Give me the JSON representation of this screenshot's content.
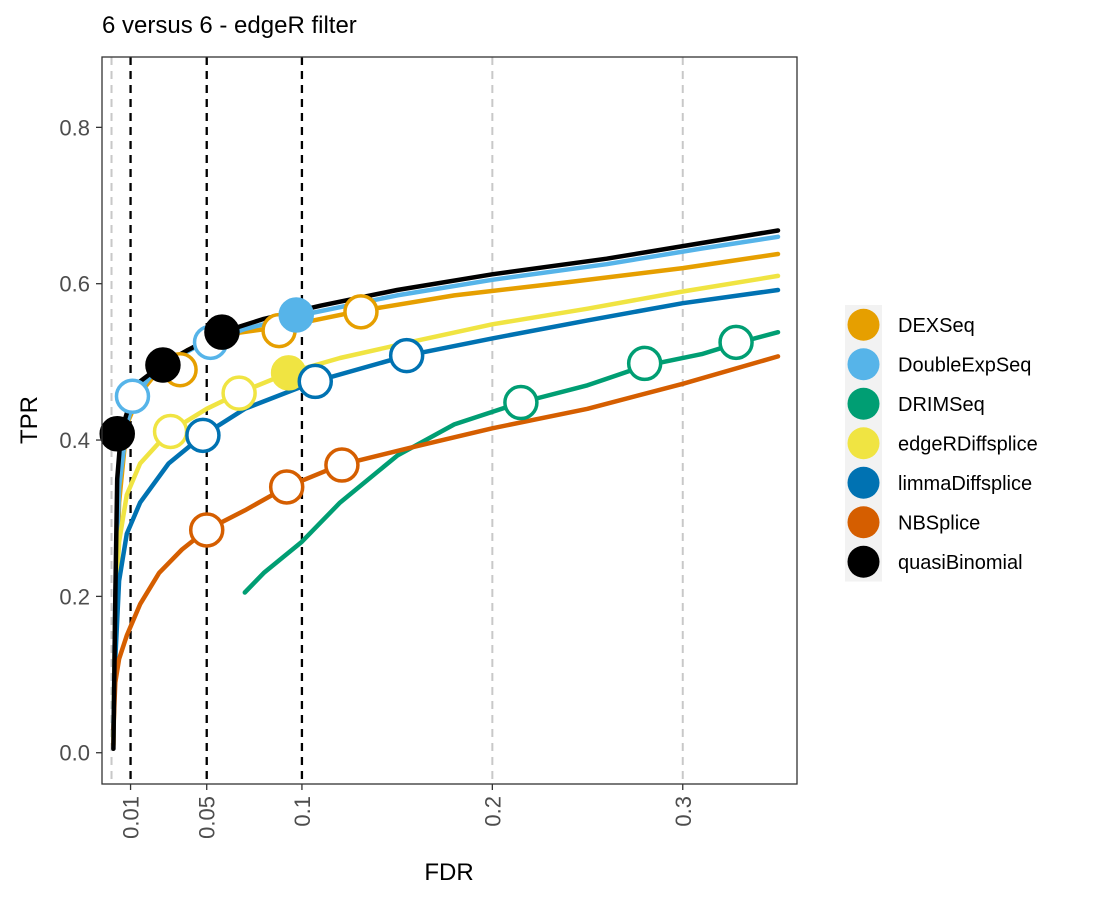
{
  "chart_data": {
    "type": "line",
    "title": "6 versus 6 - edgeR filter",
    "xlabel": "FDR",
    "ylabel": "TPR",
    "xlim": [
      -0.005,
      0.36
    ],
    "ylim": [
      -0.04,
      0.89
    ],
    "x_ticks": [
      0.01,
      0.05,
      0.1,
      0.2,
      0.3
    ],
    "x_tick_labels": [
      "0.01",
      "0.05",
      "0.1",
      "0.2",
      "0.3"
    ],
    "y_ticks": [
      0.0,
      0.2,
      0.4,
      0.6,
      0.8
    ],
    "y_tick_labels": [
      "0.0",
      "0.2",
      "0.4",
      "0.6",
      "0.8"
    ],
    "x_grid_gray": [
      0,
      0.01,
      0.05,
      0.1,
      0.2,
      0.3
    ],
    "threshold_lines": [
      0.01,
      0.05,
      0.1
    ],
    "legend_position": "right",
    "series": [
      {
        "name": "DEXSeq",
        "color": "#E69F00",
        "x": [
          0.001,
          0.002,
          0.004,
          0.008,
          0.015,
          0.025,
          0.04,
          0.06,
          0.09,
          0.13,
          0.18,
          0.24,
          0.3,
          0.35
        ],
        "y": [
          0.01,
          0.15,
          0.32,
          0.42,
          0.46,
          0.49,
          0.515,
          0.535,
          0.545,
          0.565,
          0.585,
          0.602,
          0.62,
          0.638
        ],
        "points": [
          {
            "x": 0.036,
            "y": 0.49,
            "filled": false
          },
          {
            "x": 0.088,
            "y": 0.54,
            "filled": false
          },
          {
            "x": 0.131,
            "y": 0.564,
            "filled": false
          }
        ]
      },
      {
        "name": "DoubleExpSeq",
        "color": "#56B4E9",
        "x": [
          0.001,
          0.002,
          0.004,
          0.008,
          0.012,
          0.02,
          0.03,
          0.045,
          0.07,
          0.1,
          0.15,
          0.2,
          0.26,
          0.31,
          0.35
        ],
        "y": [
          0.02,
          0.2,
          0.34,
          0.42,
          0.455,
          0.48,
          0.5,
          0.52,
          0.542,
          0.56,
          0.585,
          0.605,
          0.625,
          0.645,
          0.66
        ],
        "points": [
          {
            "x": 0.011,
            "y": 0.456,
            "filled": false
          },
          {
            "x": 0.052,
            "y": 0.525,
            "filled": false
          },
          {
            "x": 0.097,
            "y": 0.56,
            "filled": true
          }
        ]
      },
      {
        "name": "DRIMSeq",
        "color": "#009E73",
        "x": [
          0.07,
          0.08,
          0.1,
          0.12,
          0.15,
          0.18,
          0.215,
          0.25,
          0.28,
          0.31,
          0.33,
          0.35
        ],
        "y": [
          0.205,
          0.23,
          0.27,
          0.32,
          0.38,
          0.42,
          0.448,
          0.47,
          0.495,
          0.51,
          0.525,
          0.538
        ],
        "points": [
          {
            "x": 0.215,
            "y": 0.448,
            "filled": false
          },
          {
            "x": 0.28,
            "y": 0.498,
            "filled": false
          },
          {
            "x": 0.328,
            "y": 0.525,
            "filled": false
          }
        ]
      },
      {
        "name": "edgeRDiffsplice",
        "color": "#F0E442",
        "x": [
          0.001,
          0.002,
          0.004,
          0.008,
          0.015,
          0.03,
          0.05,
          0.067,
          0.093,
          0.12,
          0.16,
          0.2,
          0.25,
          0.3,
          0.35
        ],
        "y": [
          0.02,
          0.18,
          0.27,
          0.33,
          0.37,
          0.41,
          0.44,
          0.46,
          0.486,
          0.505,
          0.527,
          0.548,
          0.568,
          0.59,
          0.61
        ],
        "points": [
          {
            "x": 0.031,
            "y": 0.411,
            "filled": false
          },
          {
            "x": 0.067,
            "y": 0.46,
            "filled": false
          },
          {
            "x": 0.093,
            "y": 0.486,
            "filled": true
          }
        ]
      },
      {
        "name": "limmaDiffsplice",
        "color": "#0072B2",
        "x": [
          0.001,
          0.002,
          0.004,
          0.008,
          0.015,
          0.03,
          0.048,
          0.07,
          0.107,
          0.155,
          0.2,
          0.25,
          0.3,
          0.35
        ],
        "y": [
          0.03,
          0.12,
          0.22,
          0.28,
          0.32,
          0.37,
          0.406,
          0.44,
          0.475,
          0.508,
          0.53,
          0.553,
          0.575,
          0.592
        ],
        "points": [
          {
            "x": 0.048,
            "y": 0.406,
            "filled": false
          },
          {
            "x": 0.107,
            "y": 0.475,
            "filled": false
          },
          {
            "x": 0.155,
            "y": 0.508,
            "filled": false
          }
        ]
      },
      {
        "name": "NBSplice",
        "color": "#D55E00",
        "x": [
          0.001,
          0.002,
          0.004,
          0.008,
          0.015,
          0.025,
          0.037,
          0.05,
          0.07,
          0.092,
          0.12,
          0.16,
          0.2,
          0.25,
          0.3,
          0.35
        ],
        "y": [
          0.03,
          0.09,
          0.12,
          0.15,
          0.19,
          0.23,
          0.26,
          0.285,
          0.31,
          0.34,
          0.368,
          0.392,
          0.415,
          0.44,
          0.472,
          0.507
        ],
        "points": [
          {
            "x": 0.05,
            "y": 0.285,
            "filled": false
          },
          {
            "x": 0.092,
            "y": 0.34,
            "filled": false
          },
          {
            "x": 0.121,
            "y": 0.368,
            "filled": false
          }
        ]
      },
      {
        "name": "quasiBinomial",
        "color": "#000000",
        "x": [
          0.001,
          0.002,
          0.003,
          0.005,
          0.01,
          0.015,
          0.027,
          0.04,
          0.058,
          0.08,
          0.11,
          0.15,
          0.2,
          0.26,
          0.31,
          0.35
        ],
        "y": [
          0.005,
          0.2,
          0.35,
          0.41,
          0.45,
          0.475,
          0.497,
          0.515,
          0.538,
          0.555,
          0.572,
          0.592,
          0.612,
          0.632,
          0.652,
          0.668
        ],
        "points": [
          {
            "x": 0.003,
            "y": 0.408,
            "filled": true
          },
          {
            "x": 0.027,
            "y": 0.496,
            "filled": true
          },
          {
            "x": 0.058,
            "y": 0.538,
            "filled": true
          }
        ]
      }
    ]
  }
}
